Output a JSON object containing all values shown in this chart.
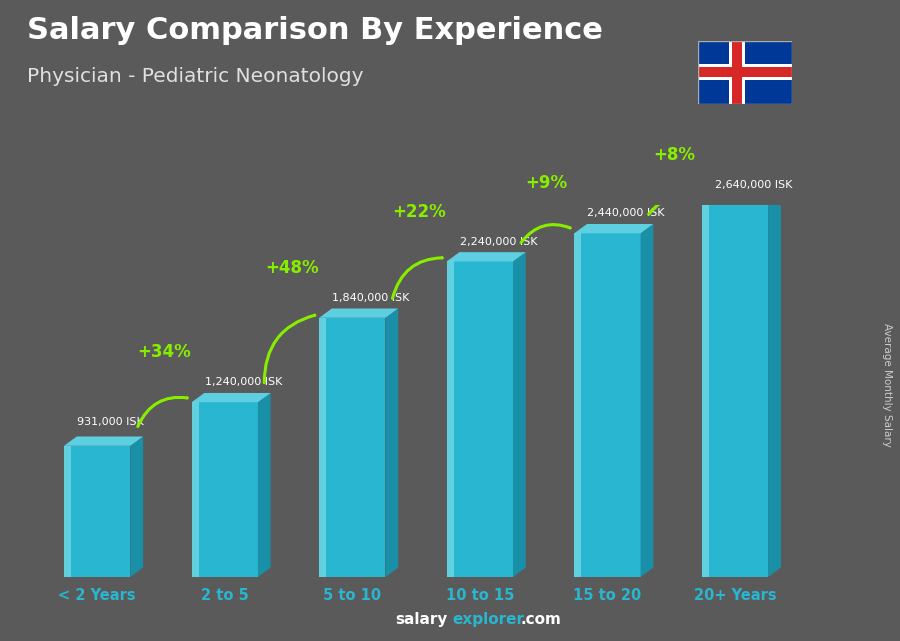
{
  "title": "Salary Comparison By Experience",
  "subtitle": "Physician - Pediatric Neonatology",
  "ylabel": "Average Monthly Salary",
  "xlabel_labels": [
    "< 2 Years",
    "2 to 5",
    "5 to 10",
    "10 to 15",
    "15 to 20",
    "20+ Years"
  ],
  "values": [
    931000,
    1240000,
    1840000,
    2240000,
    2440000,
    2640000
  ],
  "salary_labels": [
    "931,000 ISK",
    "1,240,000 ISK",
    "1,840,000 ISK",
    "2,240,000 ISK",
    "2,440,000 ISK",
    "2,640,000 ISK"
  ],
  "pct_labels": [
    "+34%",
    "+48%",
    "+22%",
    "+9%",
    "+8%"
  ],
  "bar_color_face": "#29b6d0",
  "bar_color_light": "#5ecfe0",
  "bar_color_dark": "#1a8fa8",
  "bar_color_highlight": "#7ddce8",
  "background_color": "#5a5a5a",
  "title_color": "#ffffff",
  "subtitle_color": "#e0e0e0",
  "salary_label_color": "#ffffff",
  "pct_color": "#88ee00",
  "xticklabel_color": "#29b6d0",
  "footer_salary_color": "#ffffff",
  "footer_explorer_color": "#29b6d0",
  "ylabel_color": "#cccccc",
  "flag_blue": "#003897",
  "flag_red": "#d72828",
  "flag_white": "#ffffff"
}
